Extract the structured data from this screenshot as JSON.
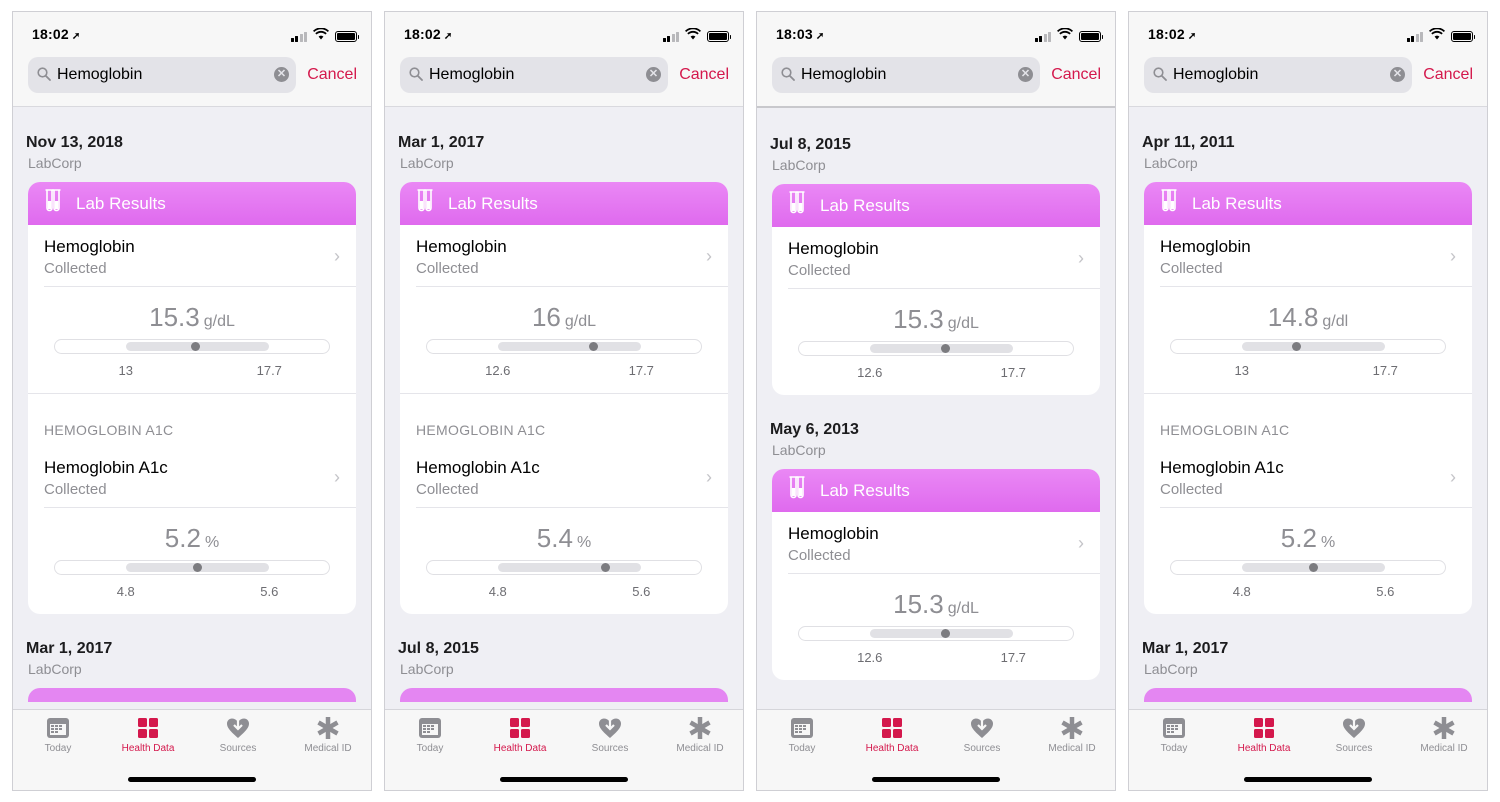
{
  "colors": {
    "accent": "#d4184c",
    "lab_header": "#e47af2",
    "muted": "#8e8e93"
  },
  "common": {
    "search_value": "Hemoglobin",
    "cancel_label": "Cancel",
    "card_title": "Lab Results",
    "collected": "Collected",
    "section_a1c": "HEMOGLOBIN A1C",
    "tabs": [
      "Today",
      "Health Data",
      "Sources",
      "Medical ID"
    ],
    "tab_icons": [
      "calendar-icon",
      "health-data-grid-icon",
      "sources-heart-icon",
      "medical-id-asterisk-icon"
    ],
    "active_tab": "Health Data"
  },
  "screens": [
    {
      "time": "18:02",
      "signal_bars": 2,
      "records": [
        {
          "date": "Nov 13, 2018",
          "source": "LabCorp",
          "tests": [
            {
              "name": "Hemoglobin",
              "value": "15.3",
              "unit": "g/dL",
              "low": "13",
              "high": "17.7",
              "value_num": 15.3,
              "low_num": 13,
              "high_num": 17.7
            },
            {
              "name": "Hemoglobin A1c",
              "value": "5.2",
              "unit": "%",
              "low": "4.8",
              "high": "5.6",
              "value_num": 5.2,
              "low_num": 4.8,
              "high_num": 5.6
            }
          ]
        },
        {
          "date": "Mar 1, 2017",
          "source": "LabCorp",
          "tests": []
        }
      ]
    },
    {
      "time": "18:02",
      "signal_bars": 2,
      "records": [
        {
          "date": "Mar 1, 2017",
          "source": "LabCorp",
          "tests": [
            {
              "name": "Hemoglobin",
              "value": "16",
              "unit": "g/dL",
              "low": "12.6",
              "high": "17.7",
              "value_num": 16,
              "low_num": 12.6,
              "high_num": 17.7
            },
            {
              "name": "Hemoglobin A1c",
              "value": "5.4",
              "unit": "%",
              "low": "4.8",
              "high": "5.6",
              "value_num": 5.4,
              "low_num": 4.8,
              "high_num": 5.6
            }
          ]
        },
        {
          "date": "Jul 8, 2015",
          "source": "LabCorp",
          "tests": []
        }
      ]
    },
    {
      "time": "18:03",
      "signal_bars": 2,
      "records": [
        {
          "date": "Jul 8, 2015",
          "source": "LabCorp",
          "tests": [
            {
              "name": "Hemoglobin",
              "value": "15.3",
              "unit": "g/dL",
              "low": "12.6",
              "high": "17.7",
              "value_num": 15.3,
              "low_num": 12.6,
              "high_num": 17.7
            }
          ]
        },
        {
          "date": "May 6, 2013",
          "source": "LabCorp",
          "tests": [
            {
              "name": "Hemoglobin",
              "value": "15.3",
              "unit": "g/dL",
              "low": "12.6",
              "high": "17.7",
              "value_num": 15.3,
              "low_num": 12.6,
              "high_num": 17.7
            }
          ]
        }
      ]
    },
    {
      "time": "18:02",
      "signal_bars": 2,
      "records": [
        {
          "date": "Apr 11, 2011",
          "source": "LabCorp",
          "tests": [
            {
              "name": "Hemoglobin",
              "value": "14.8",
              "unit": "g/dl",
              "low": "13",
              "high": "17.7",
              "value_num": 14.8,
              "low_num": 13,
              "high_num": 17.7
            },
            {
              "name": "Hemoglobin A1c",
              "value": "5.2",
              "unit": "%",
              "low": "4.8",
              "high": "5.6",
              "value_num": 5.2,
              "low_num": 4.8,
              "high_num": 5.6
            }
          ]
        },
        {
          "date": "Mar 1, 2017",
          "source": "LabCorp",
          "tests": []
        }
      ]
    }
  ]
}
